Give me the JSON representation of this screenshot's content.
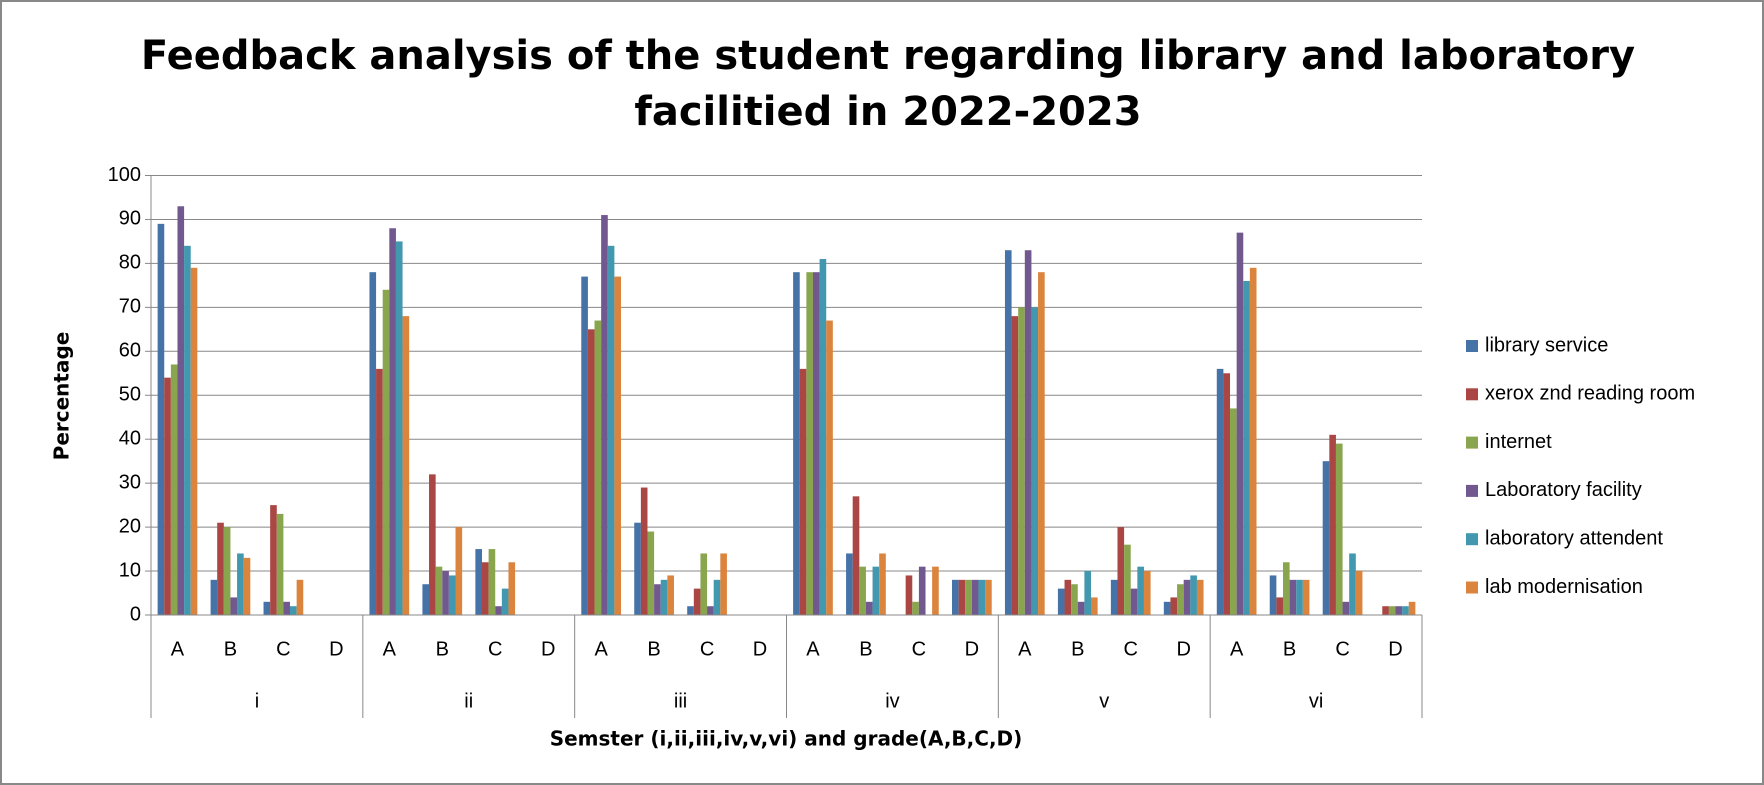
{
  "chart_data": {
    "type": "bar",
    "title": [
      "Feedback analysis of the student regarding library and laboratory",
      "facilitied in 2022-2023"
    ],
    "xlabel": "Semster (i,ii,iii,iv,v,vi) and grade(A,B,C,D)",
    "ylabel": "Percentage",
    "groups": [
      "i",
      "ii",
      "iii",
      "iv",
      "v",
      "vi"
    ],
    "categories": [
      "A",
      "B",
      "C",
      "D",
      "A",
      "B",
      "C",
      "D",
      "A",
      "B",
      "C",
      "D",
      "A",
      "B",
      "C",
      "D",
      "A",
      "B",
      "C",
      "D",
      "A",
      "B",
      "C",
      "D"
    ],
    "series": [
      {
        "name": "library service",
        "color": "#4572A7",
        "values": [
          89,
          8,
          3,
          0,
          78,
          7,
          15,
          0,
          77,
          21,
          2,
          0,
          78,
          14,
          0,
          8,
          83,
          6,
          8,
          3,
          56,
          9,
          35,
          0
        ]
      },
      {
        "name": "xerox znd reading room",
        "color": "#AA4643",
        "values": [
          54,
          21,
          25,
          0,
          56,
          32,
          12,
          0,
          65,
          29,
          6,
          0,
          56,
          27,
          9,
          8,
          68,
          8,
          20,
          4,
          55,
          4,
          41,
          2
        ]
      },
      {
        "name": "internet",
        "color": "#89A54E",
        "values": [
          57,
          20,
          23,
          0,
          74,
          11,
          15,
          0,
          67,
          19,
          14,
          0,
          78,
          11,
          3,
          8,
          70,
          7,
          16,
          7,
          47,
          12,
          39,
          2
        ]
      },
      {
        "name": "Laboratory facility",
        "color": "#71588F",
        "values": [
          93,
          4,
          3,
          0,
          88,
          10,
          2,
          0,
          91,
          7,
          2,
          0,
          78,
          3,
          11,
          8,
          83,
          3,
          6,
          8,
          87,
          8,
          3,
          2
        ]
      },
      {
        "name": "laboratory attendent",
        "color": "#4198AF",
        "values": [
          84,
          14,
          2,
          0,
          85,
          9,
          6,
          0,
          84,
          8,
          8,
          0,
          81,
          11,
          0,
          8,
          70,
          10,
          11,
          9,
          76,
          8,
          14,
          2
        ]
      },
      {
        "name": "lab modernisation",
        "color": "#DB843D",
        "values": [
          79,
          13,
          8,
          0,
          68,
          20,
          12,
          0,
          77,
          9,
          14,
          0,
          67,
          14,
          11,
          8,
          78,
          4,
          10,
          8,
          79,
          8,
          10,
          3
        ]
      }
    ],
    "ylim": [
      0,
      100
    ],
    "yticks": [
      0,
      10,
      20,
      30,
      40,
      50,
      60,
      70,
      80,
      90,
      100
    ],
    "grid": true,
    "legend": "right"
  }
}
